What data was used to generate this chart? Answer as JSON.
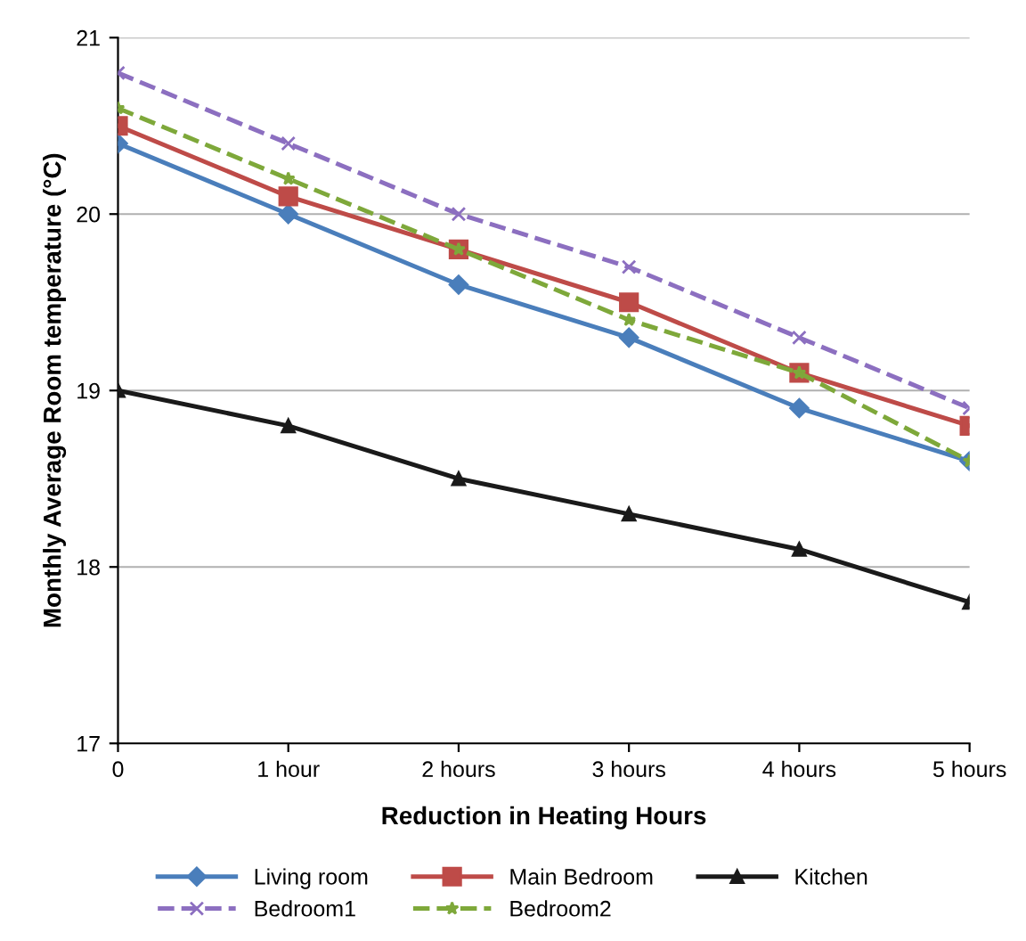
{
  "chart_data": {
    "type": "line",
    "xlabel": "Reduction in Heating Hours",
    "ylabel": "Monthly Average Room temperature (°C)",
    "categories": [
      "0",
      "1 hour",
      "2 hours",
      "3 hours",
      "4 hours",
      "5 hours"
    ],
    "series": [
      {
        "name": "Living room",
        "color": "#4a7ebb",
        "marker": "diamond",
        "line_style": "solid",
        "values": [
          20.4,
          20.0,
          19.6,
          19.3,
          18.9,
          18.6
        ]
      },
      {
        "name": "Main Bedroom",
        "color": "#be4b48",
        "marker": "square",
        "line_style": "solid",
        "values": [
          20.5,
          20.1,
          19.8,
          19.5,
          19.1,
          18.8
        ]
      },
      {
        "name": "Kitchen",
        "color": "#1a1a1a",
        "marker": "triangle",
        "line_style": "solid",
        "values": [
          19.0,
          18.8,
          18.5,
          18.3,
          18.1,
          17.8
        ]
      },
      {
        "name": "Bedroom1",
        "color": "#8c6fc0",
        "marker": "cross",
        "line_style": "dashed",
        "values": [
          20.8,
          20.4,
          20.0,
          19.7,
          19.3,
          18.9
        ]
      },
      {
        "name": "Bedroom2",
        "color": "#7ea83a",
        "marker": "star",
        "line_style": "dashed",
        "values": [
          20.6,
          20.2,
          19.8,
          19.4,
          19.1,
          18.6
        ]
      }
    ],
    "ylim": [
      17,
      21
    ],
    "yticks": [
      17,
      18,
      19,
      20,
      21
    ],
    "grid": "y",
    "legend": "bottom"
  }
}
